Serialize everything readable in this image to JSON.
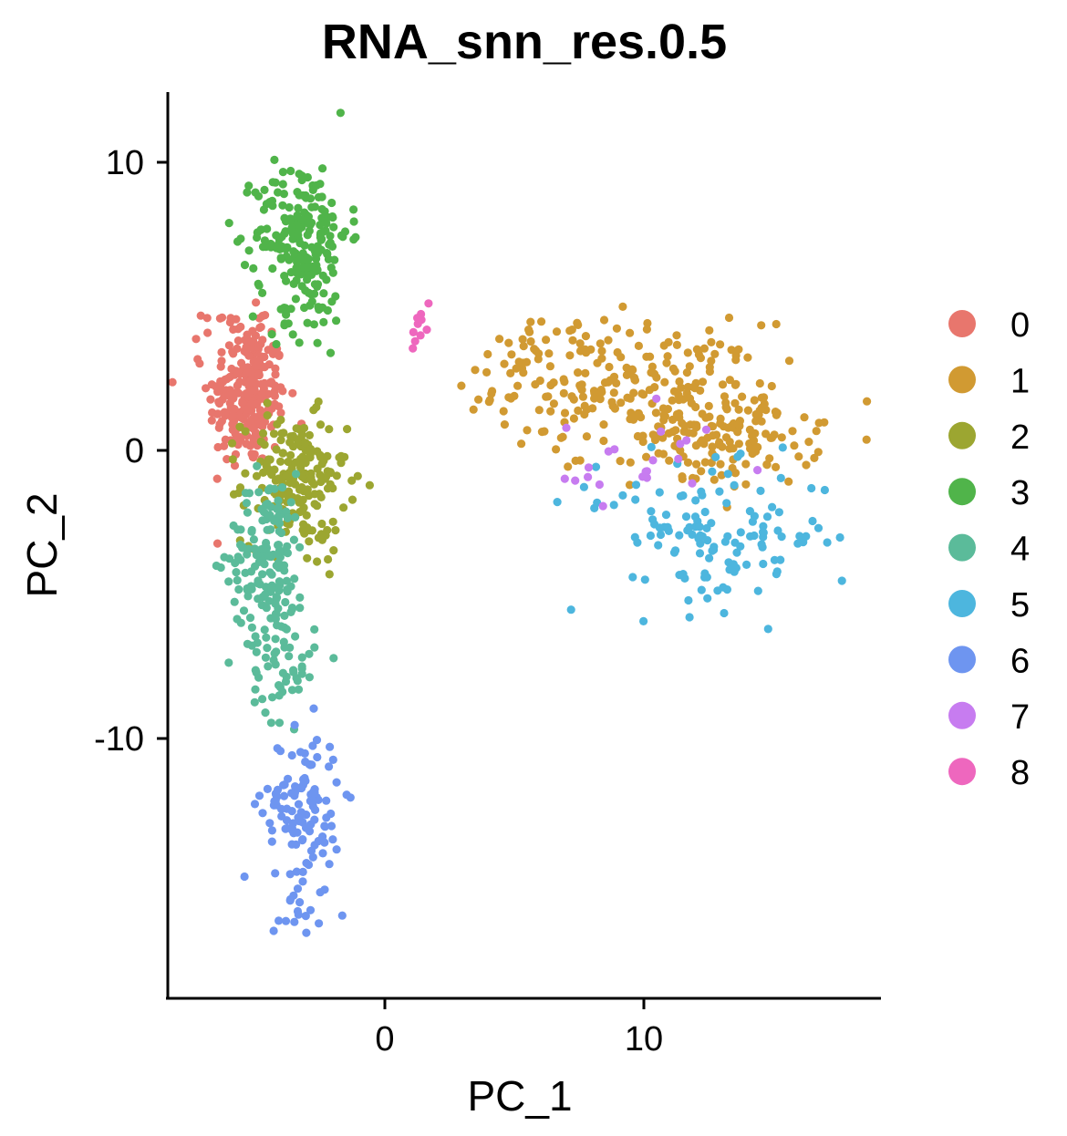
{
  "chart_data": {
    "type": "scatter",
    "title": "RNA_snn_res.0.5",
    "xlabel": "PC_1",
    "ylabel": "PC_2",
    "xlim": [
      -8.5,
      19
    ],
    "ylim": [
      -18.3,
      12.4
    ],
    "xticks": [
      0,
      10
    ],
    "yticks": [
      10,
      0,
      -10
    ],
    "grid": false,
    "legend_position": "right",
    "series": [
      {
        "name": "0",
        "color": "#E8766D",
        "clusters": [
          {
            "cx": -5.3,
            "cy": 1.8,
            "sx": 0.75,
            "sy": 1.2,
            "n": 240
          },
          {
            "cx": -5.8,
            "cy": 4.2,
            "sx": 0.6,
            "sy": 0.4,
            "n": 25
          }
        ]
      },
      {
        "name": "1",
        "color": "#D19A32",
        "clusters": [
          {
            "cx": 9.5,
            "cy": 2.2,
            "sx": 2.6,
            "sy": 1.1,
            "n": 200
          },
          {
            "cx": 13.2,
            "cy": 0.5,
            "sx": 1.8,
            "sy": 0.9,
            "n": 140
          },
          {
            "cx": 6.0,
            "cy": 3.4,
            "sx": 1.0,
            "sy": 0.7,
            "n": 30
          }
        ]
      },
      {
        "name": "2",
        "color": "#9CA631",
        "clusters": [
          {
            "cx": -3.5,
            "cy": -1.0,
            "sx": 1.0,
            "sy": 1.1,
            "n": 180
          },
          {
            "cx": -2.6,
            "cy": -3.2,
            "sx": 0.6,
            "sy": 0.6,
            "n": 15
          }
        ]
      },
      {
        "name": "3",
        "color": "#50B44A",
        "clusters": [
          {
            "cx": -3.2,
            "cy": 7.6,
            "sx": 0.9,
            "sy": 1.2,
            "n": 190
          },
          {
            "cx": -3.3,
            "cy": 5.0,
            "sx": 1.1,
            "sy": 1.0,
            "n": 40
          }
        ]
      },
      {
        "name": "4",
        "color": "#5BBB9A",
        "clusters": [
          {
            "cx": -4.5,
            "cy": -3.8,
            "sx": 0.75,
            "sy": 1.5,
            "n": 160
          },
          {
            "cx": -3.9,
            "cy": -7.6,
            "sx": 0.6,
            "sy": 0.9,
            "n": 45
          }
        ]
      },
      {
        "name": "5",
        "color": "#4DB6DE",
        "clusters": [
          {
            "cx": 13.3,
            "cy": -3.0,
            "sx": 1.9,
            "sy": 1.2,
            "n": 110
          },
          {
            "cx": 10.0,
            "cy": -2.4,
            "sx": 1.5,
            "sy": 1.0,
            "n": 20
          }
        ]
      },
      {
        "name": "6",
        "color": "#6E95F0",
        "clusters": [
          {
            "cx": -3.2,
            "cy": -12.4,
            "sx": 0.75,
            "sy": 1.3,
            "n": 120
          },
          {
            "cx": -3.3,
            "cy": -15.5,
            "sx": 0.5,
            "sy": 0.8,
            "n": 15
          }
        ]
      },
      {
        "name": "7",
        "color": "#C77CF0",
        "clusters": [
          {
            "cx": 9.5,
            "cy": -0.6,
            "sx": 1.7,
            "sy": 1.0,
            "n": 22
          }
        ]
      },
      {
        "name": "8",
        "color": "#EE67BE",
        "clusters": [
          {
            "cx": 1.4,
            "cy": 4.2,
            "sx": 0.3,
            "sy": 0.5,
            "n": 10
          }
        ]
      }
    ]
  }
}
